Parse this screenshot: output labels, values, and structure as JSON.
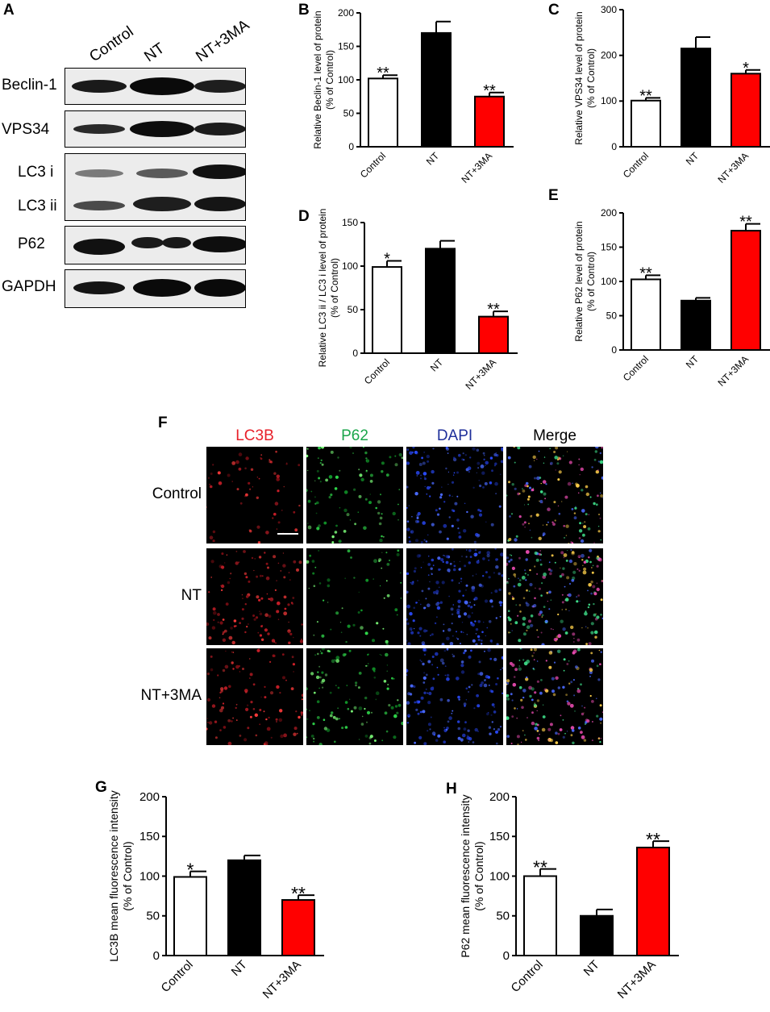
{
  "panels": {
    "A": "A",
    "B": "B",
    "C": "C",
    "D": "D",
    "E": "E",
    "F": "F",
    "G": "G",
    "H": "H"
  },
  "western_blot": {
    "lanes": [
      "Control",
      "NT",
      "NT+3MA"
    ],
    "proteins": [
      "Beclin-1",
      "VPS34",
      "LC3 i",
      "LC3 ii",
      "P62",
      "GAPDH"
    ]
  },
  "fluorescence": {
    "channels": [
      {
        "label": "LC3B",
        "color": "#e8202a"
      },
      {
        "label": "P62",
        "color": "#1aa54a"
      },
      {
        "label": "DAPI",
        "color": "#1f2f9a"
      },
      {
        "label": "Merge",
        "color": "#000000"
      }
    ],
    "rows": [
      "Control",
      "NT",
      "NT+3MA"
    ]
  },
  "colors": {
    "control": "#ffffff",
    "nt": "#000000",
    "nt3ma": "#ff0000"
  },
  "chart_data": [
    {
      "id": "B",
      "type": "bar",
      "categories": [
        "Control",
        "NT",
        "NT+3MA"
      ],
      "values": [
        102,
        170,
        75
      ],
      "errors": [
        5,
        17,
        6
      ],
      "sig": [
        "**",
        "",
        "**"
      ],
      "ylabel": [
        "Relative Beclin-1 level of protein",
        "(% of Control)"
      ],
      "ylim": [
        0,
        200
      ],
      "ticks": [
        0,
        50,
        100,
        150,
        200
      ]
    },
    {
      "id": "C",
      "type": "bar",
      "categories": [
        "Control",
        "NT",
        "NT+3MA"
      ],
      "values": [
        101,
        215,
        160
      ],
      "errors": [
        6,
        25,
        8
      ],
      "sig": [
        "**",
        "",
        "*"
      ],
      "ylabel": [
        "Relative VPS34 level of protein",
        "(% of Control)"
      ],
      "ylim": [
        0,
        300
      ],
      "ticks": [
        0,
        100,
        200,
        300
      ]
    },
    {
      "id": "D",
      "type": "bar",
      "categories": [
        "Control",
        "NT",
        "NT+3MA"
      ],
      "values": [
        99,
        120,
        42
      ],
      "errors": [
        7,
        9,
        6
      ],
      "sig": [
        "*",
        "",
        "**"
      ],
      "ylabel": [
        "Relative LC3 ii / LC3 i level of protein",
        "(% of Control)"
      ],
      "ylim": [
        0,
        150
      ],
      "ticks": [
        0,
        50,
        100,
        150
      ]
    },
    {
      "id": "E",
      "type": "bar",
      "categories": [
        "Control",
        "NT",
        "NT+3MA"
      ],
      "values": [
        103,
        72,
        174
      ],
      "errors": [
        6,
        4,
        10
      ],
      "sig": [
        "**",
        "",
        "**"
      ],
      "ylabel": [
        "Relative P62 level of protein",
        "(% of Control)"
      ],
      "ylim": [
        0,
        200
      ],
      "ticks": [
        0,
        50,
        100,
        150,
        200
      ]
    },
    {
      "id": "G",
      "type": "bar",
      "categories": [
        "Control",
        "NT",
        "NT+3MA"
      ],
      "values": [
        99,
        120,
        70
      ],
      "errors": [
        7,
        6,
        6
      ],
      "sig": [
        "*",
        "",
        "**"
      ],
      "ylabel": [
        "LC3B mean fluorescence intensity",
        "(% of Control)"
      ],
      "ylim": [
        0,
        200
      ],
      "ticks": [
        0,
        50,
        100,
        150,
        200
      ]
    },
    {
      "id": "H",
      "type": "bar",
      "categories": [
        "Control",
        "NT",
        "NT+3MA"
      ],
      "values": [
        100,
        50,
        136
      ],
      "errors": [
        9,
        8,
        8
      ],
      "sig": [
        "**",
        "",
        "**"
      ],
      "ylabel": [
        "P62 mean fluorescence intensity",
        "(% of Control)"
      ],
      "ylim": [
        0,
        200
      ],
      "ticks": [
        0,
        50,
        100,
        150,
        200
      ]
    }
  ]
}
